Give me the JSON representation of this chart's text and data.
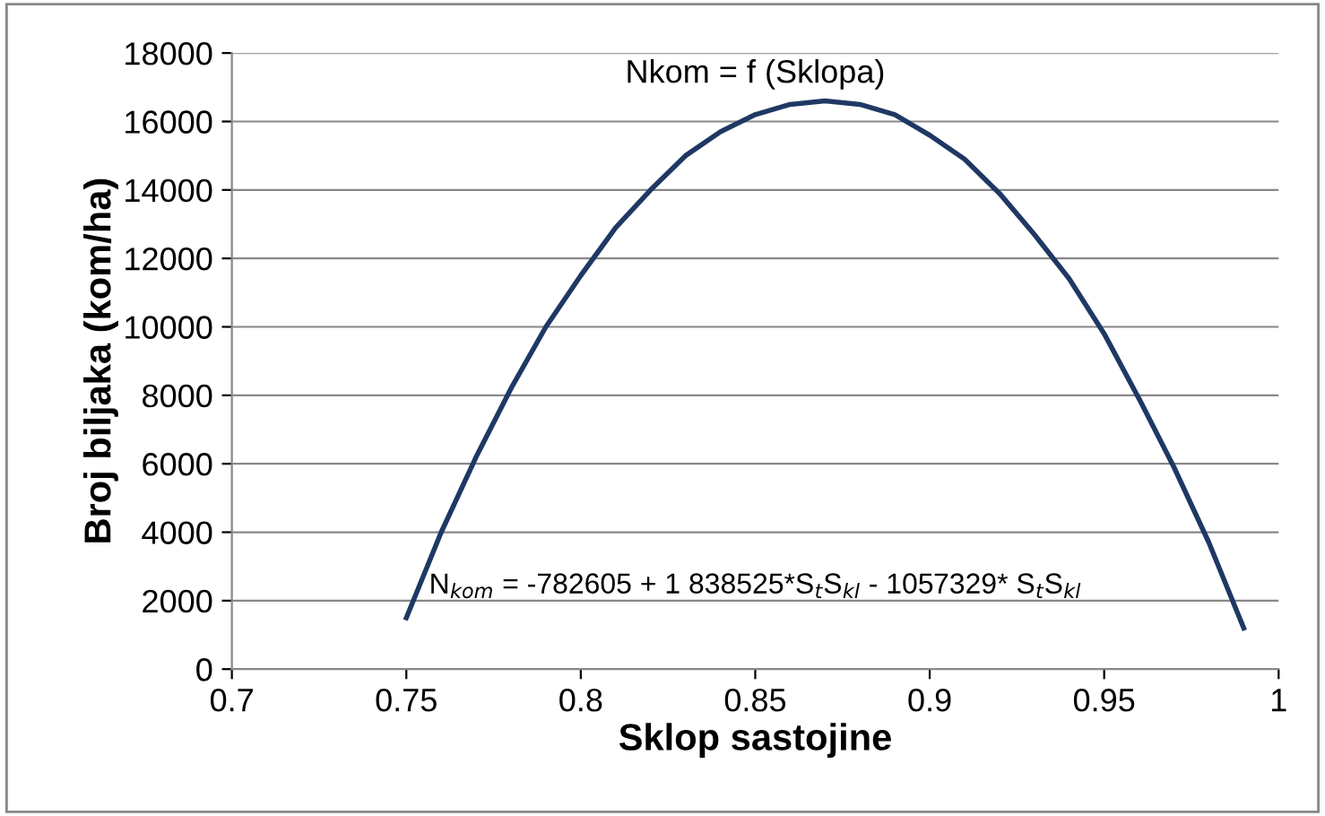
{
  "chart_data": {
    "type": "line",
    "title": "Nkom = f (Sklopa)",
    "xlabel": "Sklop sastojine",
    "ylabel": "Broj biljaka (kom/ha)",
    "x": [
      0.75,
      0.76,
      0.77,
      0.78,
      0.79,
      0.8,
      0.81,
      0.82,
      0.83,
      0.84,
      0.85,
      0.86,
      0.87,
      0.88,
      0.89,
      0.9,
      0.91,
      0.92,
      0.93,
      0.94,
      0.95,
      0.96,
      0.97,
      0.98,
      0.99
    ],
    "series": [
      {
        "color": "#1f3864",
        "values": [
          1500,
          4000,
          6200,
          8200,
          10000,
          11500,
          12900,
          14000,
          15000,
          15700,
          16200,
          16500,
          16600,
          16500,
          16200,
          15600,
          14900,
          13900,
          12700,
          11400,
          9800,
          7900,
          5900,
          3700,
          1200
        ]
      }
    ],
    "xlim": [
      0.7,
      1
    ],
    "xticks": [
      0.7,
      0.75,
      0.8,
      0.85,
      0.9,
      0.95,
      1
    ],
    "ylim": [
      0,
      18000
    ],
    "yticks": [
      0,
      2000,
      4000,
      6000,
      8000,
      10000,
      12000,
      14000,
      16000,
      18000
    ],
    "grid": "y",
    "marker": "none",
    "line_style": "solid",
    "annotations": [
      "N$_{kom}$ = -782605 + 1 838525*S$_{t}$S$_{kl}$ - 1057329* S$_{t}$S$_{kl}$"
    ]
  }
}
